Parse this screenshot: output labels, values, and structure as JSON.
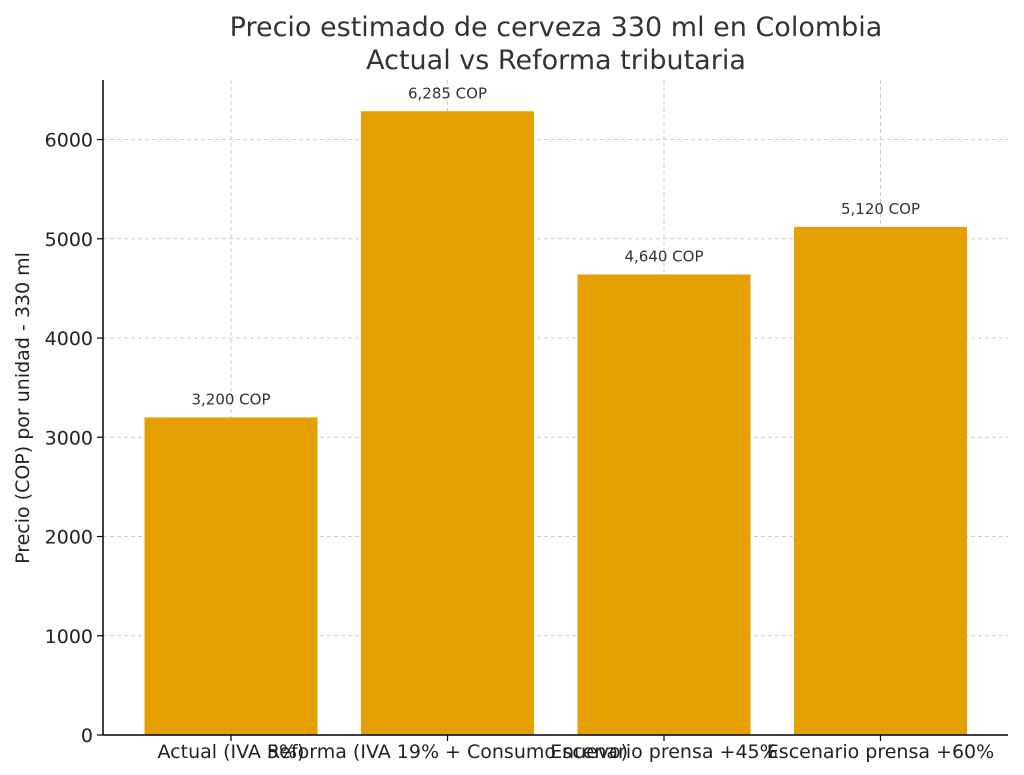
{
  "chart_data": {
    "type": "bar",
    "title_lines": [
      "Precio estimado de cerveza 330 ml en Colombia",
      "Actual vs Reforma tributaria"
    ],
    "xlabel": "",
    "ylabel": "Precio (COP) por unidad - 330 ml",
    "categories": [
      "Actual (IVA 5%)",
      "Reforma (IVA 19% + Consumo nuevo)",
      "Escenario prensa +45%",
      "Escenario prensa +60%"
    ],
    "values": [
      3200,
      6285,
      4640,
      5120
    ],
    "data_labels": [
      "3,200 COP",
      "6,285 COP",
      "4,640 COP",
      "5,120 COP"
    ],
    "ylim": [
      0,
      6600
    ],
    "yticks": [
      0,
      1000,
      2000,
      3000,
      4000,
      5000,
      6000
    ],
    "bar_color": "#E69F00",
    "grid": true
  }
}
